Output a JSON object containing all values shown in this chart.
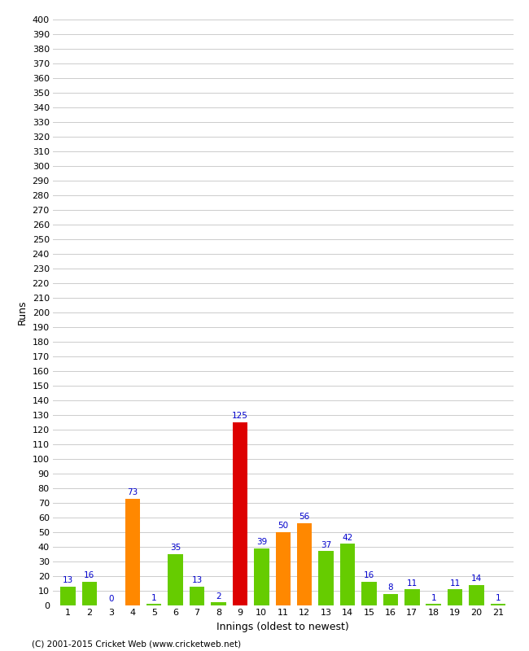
{
  "innings": [
    1,
    2,
    3,
    4,
    5,
    6,
    7,
    8,
    9,
    10,
    11,
    12,
    13,
    14,
    15,
    16,
    17,
    18,
    19,
    20,
    21
  ],
  "values": [
    13,
    16,
    0,
    73,
    1,
    35,
    13,
    2,
    125,
    39,
    50,
    56,
    37,
    42,
    16,
    8,
    11,
    1,
    11,
    14,
    1
  ],
  "colors": [
    "#66cc00",
    "#66cc00",
    "#66cc00",
    "#ff8800",
    "#66cc00",
    "#66cc00",
    "#66cc00",
    "#66cc00",
    "#dd0000",
    "#66cc00",
    "#ff8800",
    "#ff8800",
    "#66cc00",
    "#66cc00",
    "#66cc00",
    "#66cc00",
    "#66cc00",
    "#66cc00",
    "#66cc00",
    "#66cc00",
    "#66cc00"
  ],
  "ylabel": "Runs",
  "xlabel": "Innings (oldest to newest)",
  "ylim": [
    0,
    400
  ],
  "ytick_step": 10,
  "label_color": "#0000cc",
  "footer": "(C) 2001-2015 Cricket Web (www.cricketweb.net)",
  "bg_color": "#ffffff",
  "grid_color": "#cccccc",
  "bar_width": 0.7
}
